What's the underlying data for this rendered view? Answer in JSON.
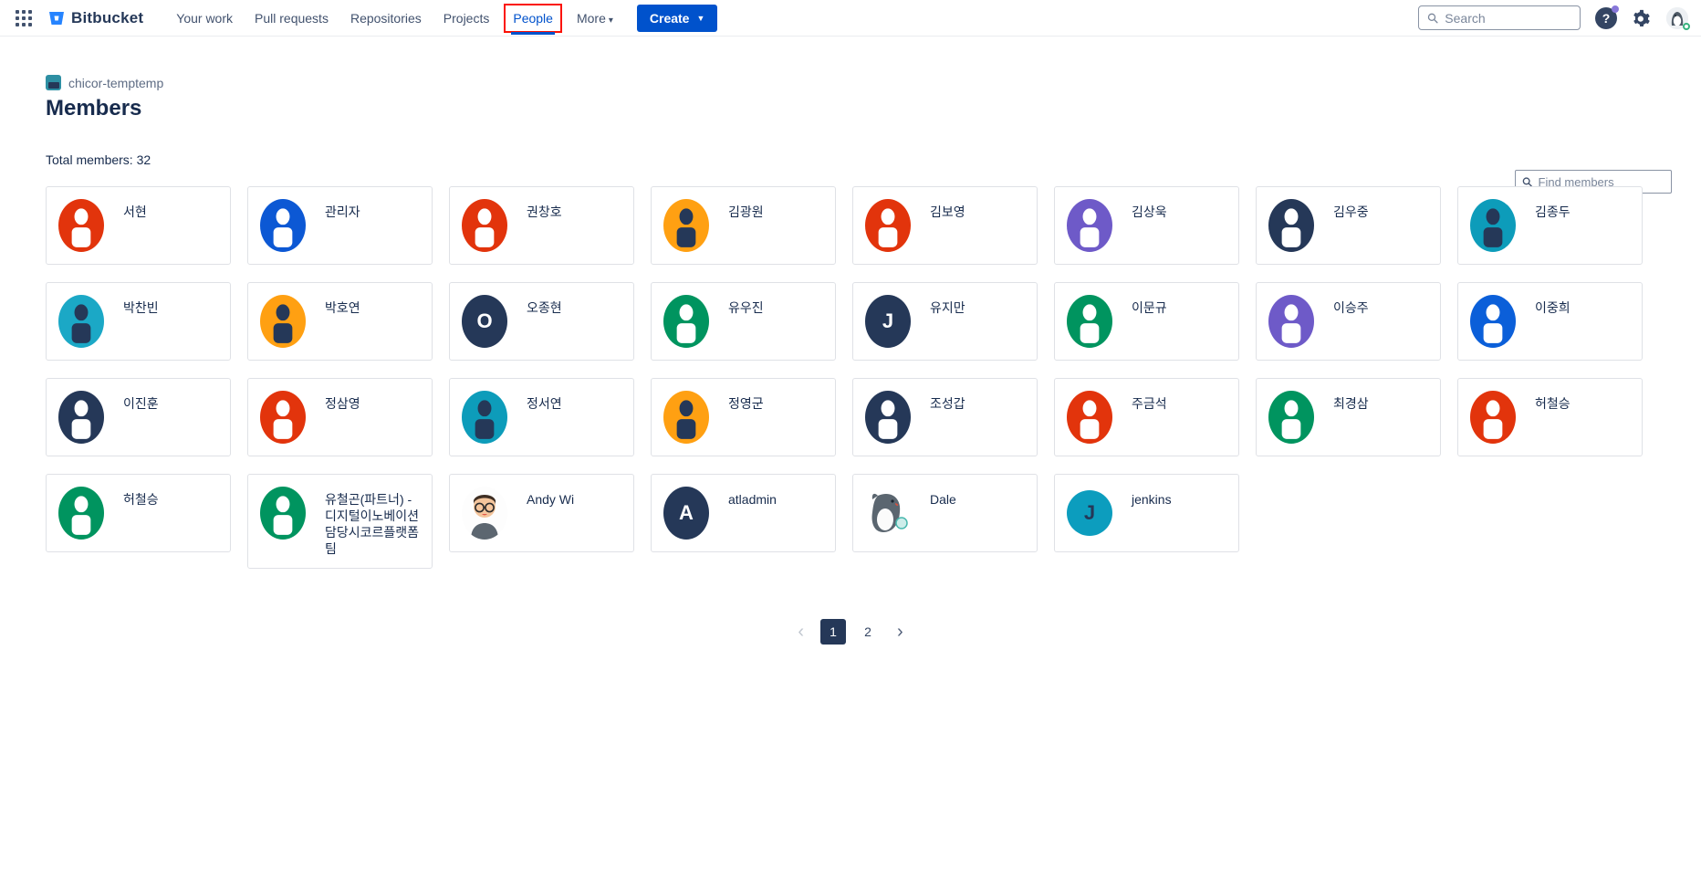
{
  "nav": {
    "brand": "Bitbucket",
    "items": [
      {
        "label": "Your work",
        "active": false
      },
      {
        "label": "Pull requests",
        "active": false
      },
      {
        "label": "Repositories",
        "active": false
      },
      {
        "label": "Projects",
        "active": false
      },
      {
        "label": "People",
        "active": true
      }
    ],
    "more_label": "More",
    "create_label": "Create",
    "search_placeholder": "Search"
  },
  "page": {
    "breadcrumb": "chicor-temptemp",
    "title": "Members",
    "find_placeholder": "Find members",
    "total_label": "Total members: 32"
  },
  "colors": {
    "accent_blue": "#0052CC",
    "annotation_red": "#FB1205",
    "navy": "#253858",
    "card_border": "#DFE1E6"
  },
  "members": [
    {
      "name": "서현",
      "avatar": "person",
      "bg": "#E2340C",
      "fg": "#FFFFFF"
    },
    {
      "name": "관리자",
      "avatar": "person",
      "bg": "#0C58D4",
      "fg": "#FFFFFF"
    },
    {
      "name": "권창호",
      "avatar": "person",
      "bg": "#E2340C",
      "fg": "#FFFFFF"
    },
    {
      "name": "김광원",
      "avatar": "person",
      "bg": "#FFA012",
      "fg": "#253858"
    },
    {
      "name": "김보영",
      "avatar": "person",
      "bg": "#E2340C",
      "fg": "#FFFFFF"
    },
    {
      "name": "김상욱",
      "avatar": "person",
      "bg": "#6E5AC8",
      "fg": "#FFFFFF"
    },
    {
      "name": "김우중",
      "avatar": "person",
      "bg": "#253858",
      "fg": "#FFFFFF"
    },
    {
      "name": "김종두",
      "avatar": "person",
      "bg": "#0D9CBA",
      "fg": "#253858"
    },
    {
      "name": "박찬빈",
      "avatar": "person",
      "bg": "#1BA8C6",
      "fg": "#253858"
    },
    {
      "name": "박호연",
      "avatar": "person",
      "bg": "#FFA012",
      "fg": "#253858"
    },
    {
      "name": "오종현",
      "avatar": "letter",
      "letter": "O",
      "bg": "#253858",
      "fg": "#FFFFFF"
    },
    {
      "name": "유우진",
      "avatar": "person",
      "bg": "#00945F",
      "fg": "#FFFFFF"
    },
    {
      "name": "유지만",
      "avatar": "letter",
      "letter": "J",
      "bg": "#253858",
      "fg": "#FFFFFF"
    },
    {
      "name": "이문규",
      "avatar": "person",
      "bg": "#00945F",
      "fg": "#FFFFFF"
    },
    {
      "name": "이승주",
      "avatar": "person",
      "bg": "#6E5AC8",
      "fg": "#FFFFFF"
    },
    {
      "name": "이중희",
      "avatar": "person",
      "bg": "#0B5FD9",
      "fg": "#FFFFFF"
    },
    {
      "name": "이진훈",
      "avatar": "person",
      "bg": "#253858",
      "fg": "#FFFFFF"
    },
    {
      "name": "정삼영",
      "avatar": "person",
      "bg": "#E2340C",
      "fg": "#FFFFFF"
    },
    {
      "name": "정서연",
      "avatar": "person",
      "bg": "#0D9CBA",
      "fg": "#253858"
    },
    {
      "name": "정영군",
      "avatar": "person",
      "bg": "#FFA012",
      "fg": "#253858"
    },
    {
      "name": "조성갑",
      "avatar": "person",
      "bg": "#253858",
      "fg": "#FFFFFF"
    },
    {
      "name": "주금석",
      "avatar": "person",
      "bg": "#E2340C",
      "fg": "#FFFFFF"
    },
    {
      "name": "최경삼",
      "avatar": "person",
      "bg": "#00945F",
      "fg": "#FFFFFF"
    },
    {
      "name": "허철승",
      "avatar": "person",
      "bg": "#E2340C",
      "fg": "#FFFFFF"
    },
    {
      "name": "허철승",
      "avatar": "person",
      "bg": "#00945F",
      "fg": "#FFFFFF"
    },
    {
      "name": "유철곤(파트너) - 디지털이노베이션담당시코르플랫폼팀",
      "avatar": "person",
      "bg": "#00945F",
      "fg": "#FFFFFF"
    },
    {
      "name": "Andy Wi",
      "avatar": "photo-andy"
    },
    {
      "name": "atladmin",
      "avatar": "letter",
      "letter": "A",
      "bg": "#253858",
      "fg": "#FFFFFF"
    },
    {
      "name": "Dale",
      "avatar": "photo-dale"
    },
    {
      "name": "jenkins",
      "avatar": "letter",
      "letter": "J",
      "bg": "#0C9DBE",
      "fg": "#253858",
      "shape": "round"
    }
  ],
  "pagination": {
    "prev": "‹",
    "pages": [
      "1",
      "2"
    ],
    "current": "1",
    "next": "›"
  }
}
